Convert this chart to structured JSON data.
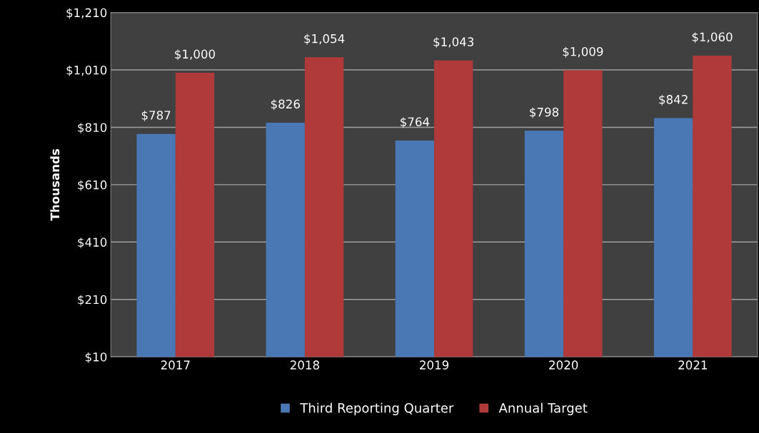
{
  "chart_data": {
    "type": "bar",
    "ylabel": "Thousands",
    "categories": [
      "2017",
      "2018",
      "2019",
      "2020",
      "2021"
    ],
    "series": [
      {
        "name": "Third Reporting Quarter",
        "color": "#4a78b5",
        "values": [
          787,
          826,
          764,
          798,
          842
        ],
        "value_labels": [
          "$787",
          "$826",
          "$764",
          "$798",
          "$842"
        ]
      },
      {
        "name": "Annual Target",
        "color": "#b03a3a",
        "values": [
          1000,
          1054,
          1043,
          1009,
          1060
        ],
        "value_labels": [
          "$1,000",
          "$1,054",
          "$1,043",
          "$1,009",
          "$1,060"
        ]
      }
    ],
    "ylim": [
      10,
      1210
    ],
    "yticks": [
      {
        "value": 10,
        "label": "$10"
      },
      {
        "value": 210,
        "label": "$210"
      },
      {
        "value": 410,
        "label": "$410"
      },
      {
        "value": 610,
        "label": "$610"
      },
      {
        "value": 810,
        "label": "$810"
      },
      {
        "value": 1010,
        "label": "$1,010"
      },
      {
        "value": 1210,
        "label": "$1,210"
      }
    ],
    "grid": "y",
    "legend": "bottom"
  }
}
